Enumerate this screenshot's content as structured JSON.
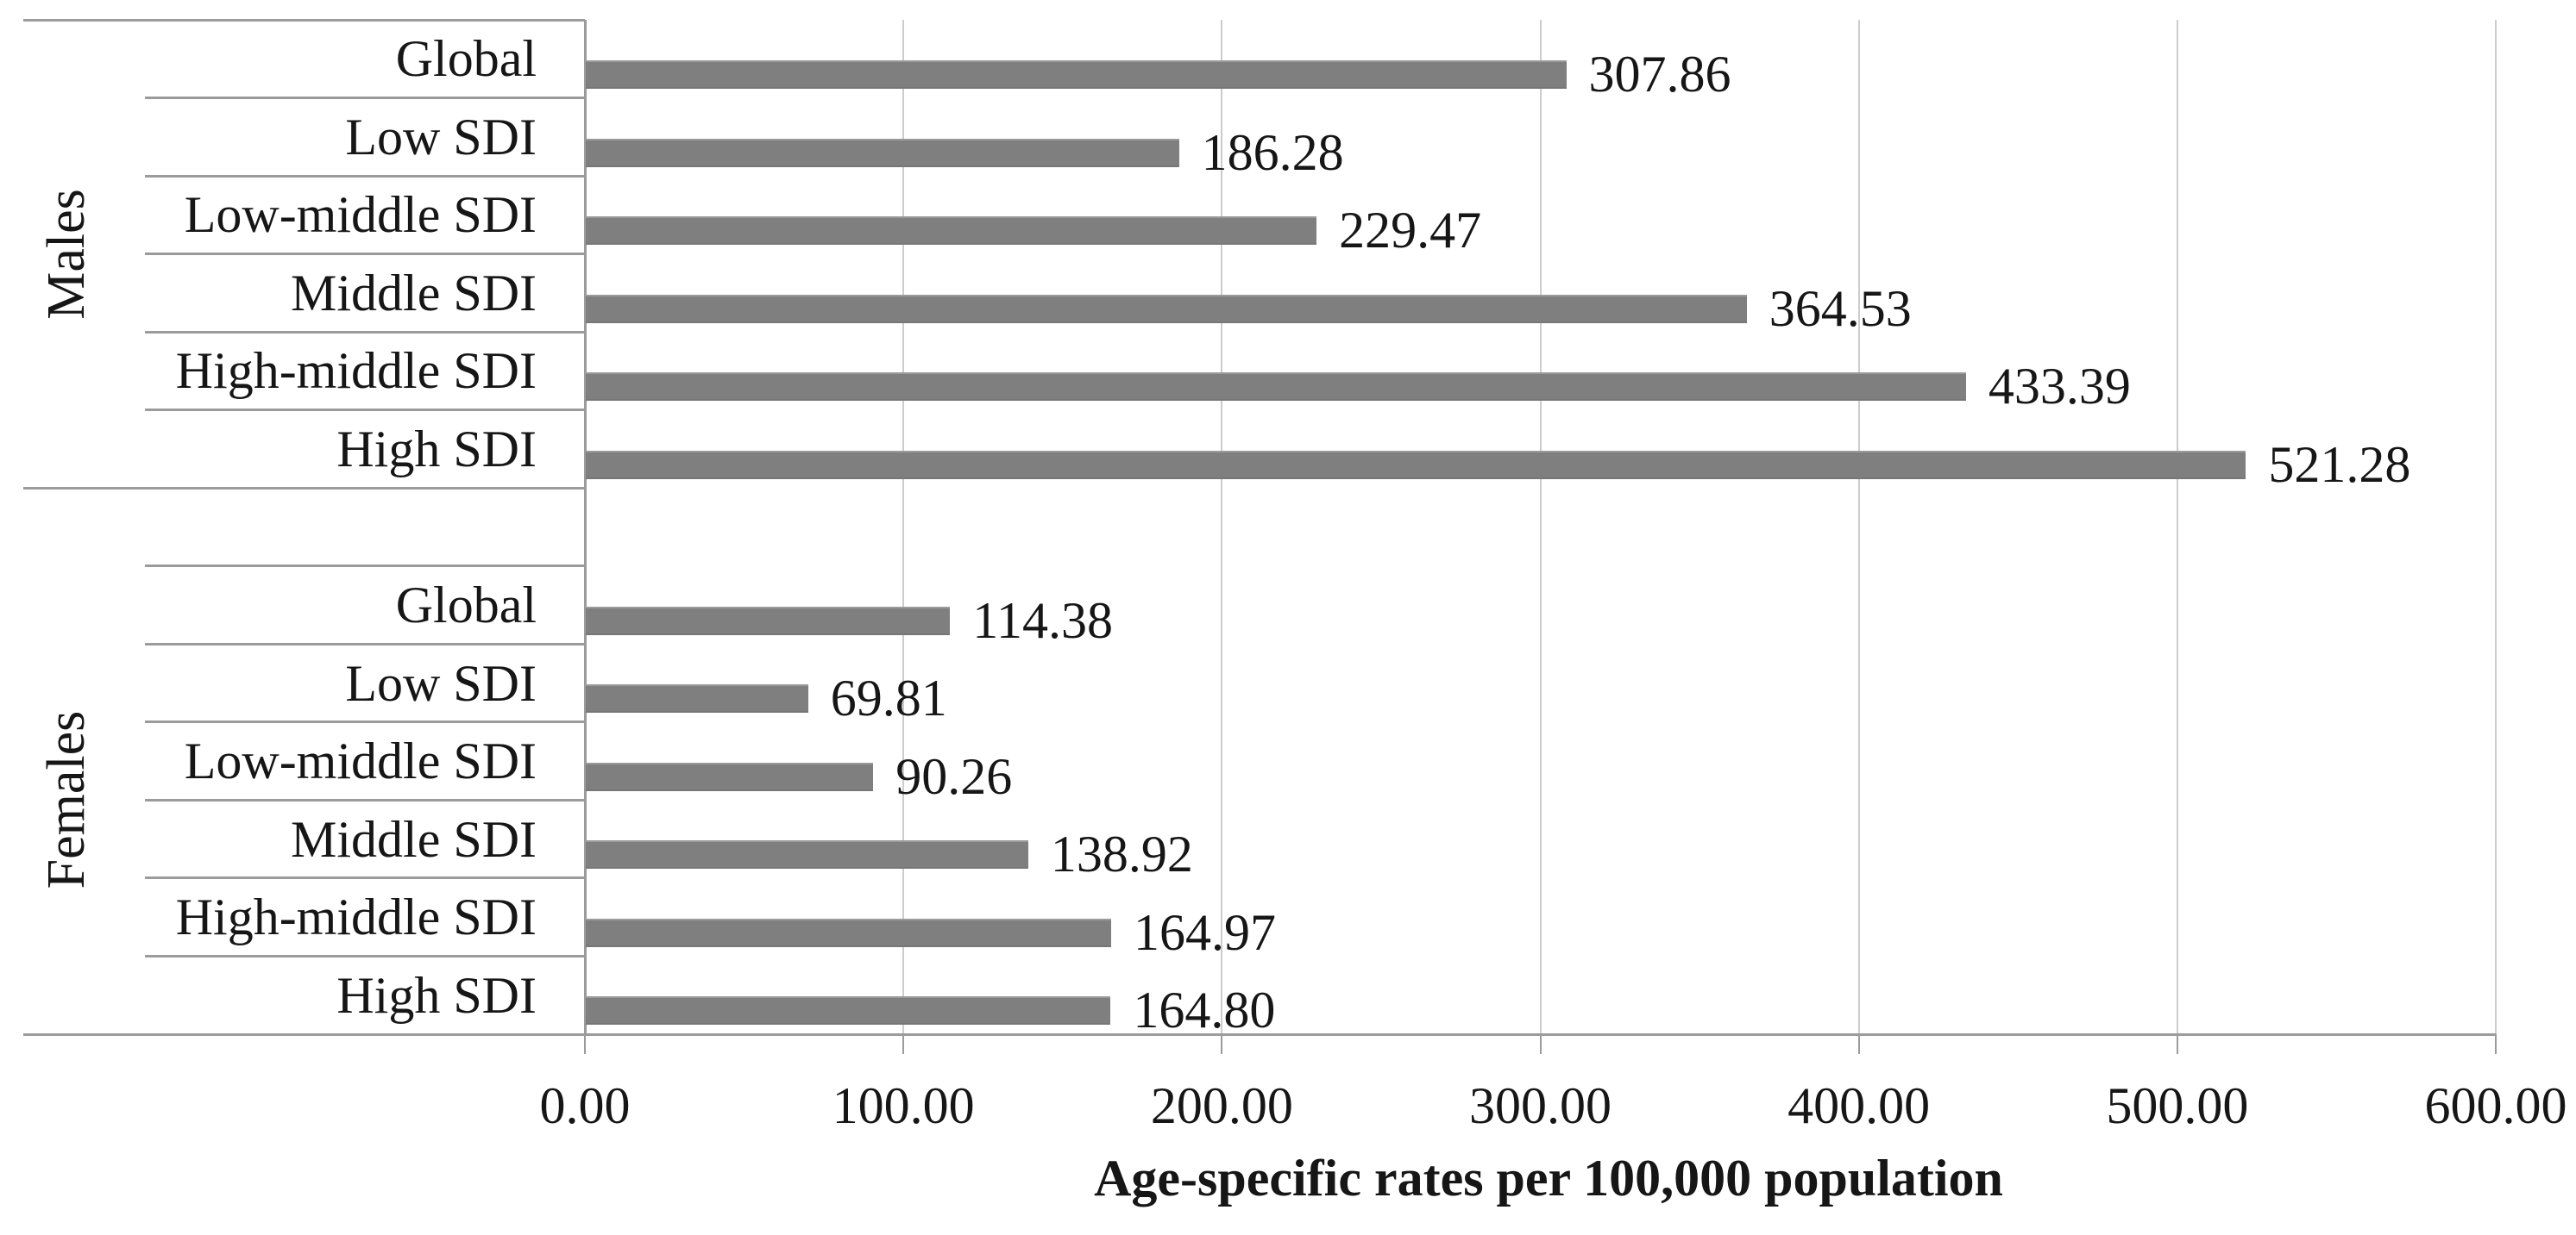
{
  "chart_data": {
    "type": "bar",
    "orientation": "horizontal",
    "title": "",
    "xlabel": "Age-specific rates per 100,000 population",
    "ylabel": "",
    "xlim": [
      0,
      600
    ],
    "x_tick_step": 100,
    "x_ticks": [
      "0.00",
      "100.00",
      "200.00",
      "300.00",
      "400.00",
      "500.00",
      "600.00"
    ],
    "grid": "vertical-gridlines-on",
    "legend": "none",
    "bar_color": "#7f7f7f",
    "gridline_color": "#cccccc",
    "border_color": "#9b9b9b",
    "groups": [
      {
        "name": "Males",
        "categories": [
          "Global",
          "Low SDI",
          "Low-middle SDI",
          "Middle SDI",
          "High-middle SDI",
          "High SDI"
        ],
        "values": [
          307.86,
          186.28,
          229.47,
          364.53,
          433.39,
          521.28
        ],
        "value_labels": [
          "307.86",
          "186.28",
          "229.47",
          "364.53",
          "433.39",
          "521.28"
        ]
      },
      {
        "name": "Females",
        "categories": [
          "Global",
          "Low SDI",
          "Low-middle SDI",
          "Middle SDI",
          "High-middle SDI",
          "High SDI"
        ],
        "values": [
          114.38,
          69.81,
          90.26,
          138.92,
          164.97,
          164.8
        ],
        "value_labels": [
          "114.38",
          "69.81",
          "90.26",
          "138.92",
          "164.97",
          "164.80"
        ]
      }
    ]
  }
}
